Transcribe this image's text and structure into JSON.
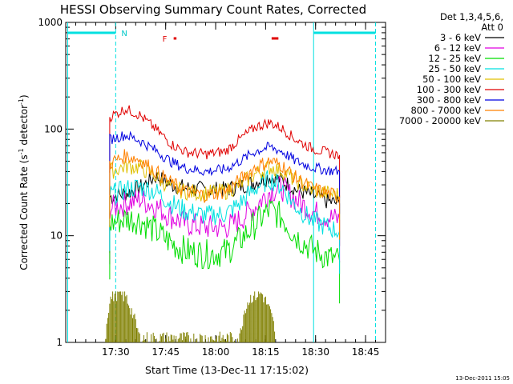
{
  "chart_data": {
    "type": "line",
    "title": "HESSI Observing Summary Count Rates, Corrected",
    "xlabel": "Start Time (13-Dec-11 17:15:02)",
    "ylabel_parts": [
      "Corrected Count Rate (s",
      "-1",
      " detector",
      "-1",
      ")"
    ],
    "y_scale": "log",
    "ylim": [
      1,
      1000
    ],
    "xlim_minutes": [
      17.25,
      18.85
    ],
    "x_ticks": [
      {
        "label": "17:30",
        "value": 17.5
      },
      {
        "label": "17:45",
        "value": 17.75
      },
      {
        "label": "18:00",
        "value": 18.0
      },
      {
        "label": "18:15",
        "value": 18.25
      },
      {
        "label": "18:30",
        "value": 18.5
      },
      {
        "label": "18:45",
        "value": 18.75
      }
    ],
    "y_ticks": [
      {
        "label": "1",
        "value": 1
      },
      {
        "label": "10",
        "value": 10
      },
      {
        "label": "100",
        "value": 100
      },
      {
        "label": "1000",
        "value": 1000
      }
    ],
    "legend_header": [
      "Det 1,3,4,5,6,",
      "Att 0"
    ],
    "legend_placement": "top-right, outside plot",
    "series": [
      {
        "name": "3 - 6 keV",
        "color": "#000000",
        "values": [
          [
            17.47,
            23
          ],
          [
            17.55,
            25
          ],
          [
            17.62,
            28
          ],
          [
            17.7,
            36
          ],
          [
            17.78,
            30
          ],
          [
            17.85,
            28
          ],
          [
            17.95,
            27
          ],
          [
            18.05,
            27
          ],
          [
            18.12,
            29
          ],
          [
            18.2,
            32
          ],
          [
            18.27,
            36
          ],
          [
            18.33,
            33
          ],
          [
            18.4,
            27
          ],
          [
            18.48,
            24
          ],
          [
            18.56,
            21
          ],
          [
            18.62,
            20
          ]
        ]
      },
      {
        "name": "6 - 12 keV",
        "color": "#e000e0",
        "values": [
          [
            17.47,
            18
          ],
          [
            17.55,
            20
          ],
          [
            17.62,
            22
          ],
          [
            17.7,
            19
          ],
          [
            17.78,
            15
          ],
          [
            17.85,
            13
          ],
          [
            17.95,
            12
          ],
          [
            18.05,
            12
          ],
          [
            18.12,
            14
          ],
          [
            18.2,
            19
          ],
          [
            18.27,
            26
          ],
          [
            18.33,
            28
          ],
          [
            18.4,
            22
          ],
          [
            18.48,
            17
          ],
          [
            18.56,
            15
          ],
          [
            18.62,
            14
          ]
        ]
      },
      {
        "name": "12 - 25 keV",
        "color": "#00dd00",
        "values": [
          [
            17.47,
            13
          ],
          [
            17.55,
            14.5
          ],
          [
            17.62,
            14
          ],
          [
            17.7,
            11
          ],
          [
            17.78,
            8.5
          ],
          [
            17.85,
            7.2
          ],
          [
            17.95,
            6.7
          ],
          [
            18.05,
            7
          ],
          [
            18.12,
            9
          ],
          [
            18.2,
            13
          ],
          [
            18.27,
            17.5
          ],
          [
            18.33,
            15
          ],
          [
            18.4,
            10
          ],
          [
            18.48,
            7.5
          ],
          [
            18.56,
            6.3
          ],
          [
            18.62,
            5.8
          ]
        ]
      },
      {
        "name": "25 - 50 keV",
        "color": "#00e0e0",
        "values": [
          [
            17.47,
            24
          ],
          [
            17.55,
            27
          ],
          [
            17.62,
            29
          ],
          [
            17.7,
            26
          ],
          [
            17.78,
            20
          ],
          [
            17.85,
            17
          ],
          [
            17.95,
            15.5
          ],
          [
            18.05,
            16
          ],
          [
            18.12,
            20
          ],
          [
            18.2,
            28
          ],
          [
            18.27,
            34
          ],
          [
            18.33,
            29
          ],
          [
            18.4,
            19
          ],
          [
            18.48,
            14
          ],
          [
            18.56,
            12
          ],
          [
            18.62,
            11
          ]
        ]
      },
      {
        "name": "50 - 100 keV",
        "color": "#e0c000",
        "values": [
          [
            17.47,
            40
          ],
          [
            17.55,
            45
          ],
          [
            17.62,
            44
          ],
          [
            17.7,
            36
          ],
          [
            17.78,
            28
          ],
          [
            17.85,
            26
          ],
          [
            17.95,
            25
          ],
          [
            18.05,
            26
          ],
          [
            18.12,
            30
          ],
          [
            18.2,
            38
          ],
          [
            18.27,
            44
          ],
          [
            18.33,
            41
          ],
          [
            18.4,
            33
          ],
          [
            18.48,
            27
          ],
          [
            18.56,
            25
          ],
          [
            18.62,
            24
          ]
        ]
      },
      {
        "name": "100 - 300 keV",
        "color": "#e00000",
        "values": [
          [
            17.47,
            130
          ],
          [
            17.55,
            155
          ],
          [
            17.62,
            135
          ],
          [
            17.7,
            100
          ],
          [
            17.78,
            72
          ],
          [
            17.85,
            61
          ],
          [
            17.95,
            58
          ],
          [
            18.05,
            62
          ],
          [
            18.12,
            80
          ],
          [
            18.2,
            105
          ],
          [
            18.27,
            115
          ],
          [
            18.33,
            102
          ],
          [
            18.4,
            80
          ],
          [
            18.48,
            66
          ],
          [
            18.56,
            60
          ],
          [
            18.62,
            57
          ]
        ]
      },
      {
        "name": "300 - 800 keV",
        "color": "#0000e0",
        "values": [
          [
            17.47,
            80
          ],
          [
            17.55,
            88
          ],
          [
            17.62,
            78
          ],
          [
            17.7,
            63
          ],
          [
            17.78,
            49
          ],
          [
            17.85,
            43
          ],
          [
            17.95,
            40
          ],
          [
            18.05,
            42
          ],
          [
            18.12,
            50
          ],
          [
            18.2,
            62
          ],
          [
            18.27,
            68
          ],
          [
            18.33,
            62
          ],
          [
            18.4,
            50
          ],
          [
            18.48,
            44
          ],
          [
            18.56,
            41
          ],
          [
            18.62,
            40
          ]
        ]
      },
      {
        "name": "800 - 7000 keV",
        "color": "#ff8000",
        "values": [
          [
            17.47,
            48
          ],
          [
            17.55,
            56
          ],
          [
            17.62,
            52
          ],
          [
            17.7,
            40
          ],
          [
            17.78,
            31
          ],
          [
            17.85,
            26
          ],
          [
            17.95,
            24
          ],
          [
            18.05,
            26
          ],
          [
            18.12,
            33
          ],
          [
            18.2,
            44
          ],
          [
            18.27,
            50
          ],
          [
            18.33,
            46
          ],
          [
            18.4,
            35
          ],
          [
            18.48,
            28
          ],
          [
            18.56,
            25
          ],
          [
            18.62,
            23
          ]
        ]
      },
      {
        "name": "7000 - 20000 keV",
        "color": "#808000",
        "values": [
          [
            17.45,
            1.2
          ],
          [
            17.47,
            2.5
          ],
          [
            17.5,
            2.9
          ],
          [
            17.55,
            2.7
          ],
          [
            17.6,
            1.5
          ],
          [
            17.62,
            1.1
          ],
          [
            18.12,
            1.1
          ],
          [
            18.15,
            2.2
          ],
          [
            18.18,
            2.7
          ],
          [
            18.23,
            2.9
          ],
          [
            18.27,
            2.0
          ],
          [
            18.3,
            1.2
          ]
        ]
      }
    ],
    "vlines": [
      17.26,
      17.5,
      18.49,
      18.8
    ],
    "saa_flag": {
      "label": "N",
      "bars_minutes": [
        [
          17.26,
          17.5
        ],
        [
          18.49,
          18.8
        ]
      ]
    },
    "flare_flag": {
      "label": "F",
      "bars_minutes": [
        [
          17.79,
          17.8
        ],
        [
          18.28,
          18.31
        ]
      ]
    },
    "footer_date": "13-Dec-2011 15:05"
  }
}
